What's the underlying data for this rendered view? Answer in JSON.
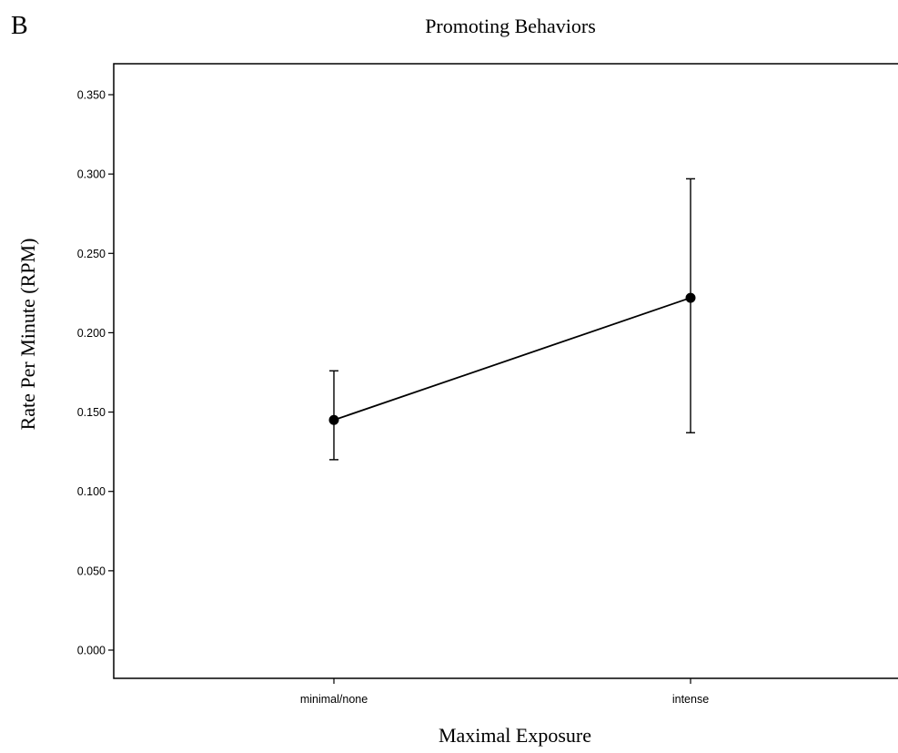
{
  "panel_label": "B",
  "chart_data": {
    "type": "line",
    "title": "Promoting Behaviors",
    "xlabel": "Maximal Exposure",
    "ylabel": "Rate Per Minute (RPM)",
    "categories": [
      "minimal/none",
      "intense"
    ],
    "series": [
      {
        "values": [
          0.145,
          0.222
        ],
        "error_low": [
          0.12,
          0.137
        ],
        "error_high": [
          0.176,
          0.297
        ]
      }
    ],
    "ylim": [
      0,
      0.36
    ],
    "yticks": [
      "0.000",
      "0.050",
      "0.100",
      "0.150",
      "0.200",
      "0.250",
      "0.300",
      "0.350"
    ],
    "ytick_values": [
      0,
      0.05,
      0.1,
      0.15,
      0.2,
      0.25,
      0.3,
      0.35
    ],
    "grid": false,
    "colors": {
      "line": "#000000",
      "axis": "#000000"
    }
  }
}
